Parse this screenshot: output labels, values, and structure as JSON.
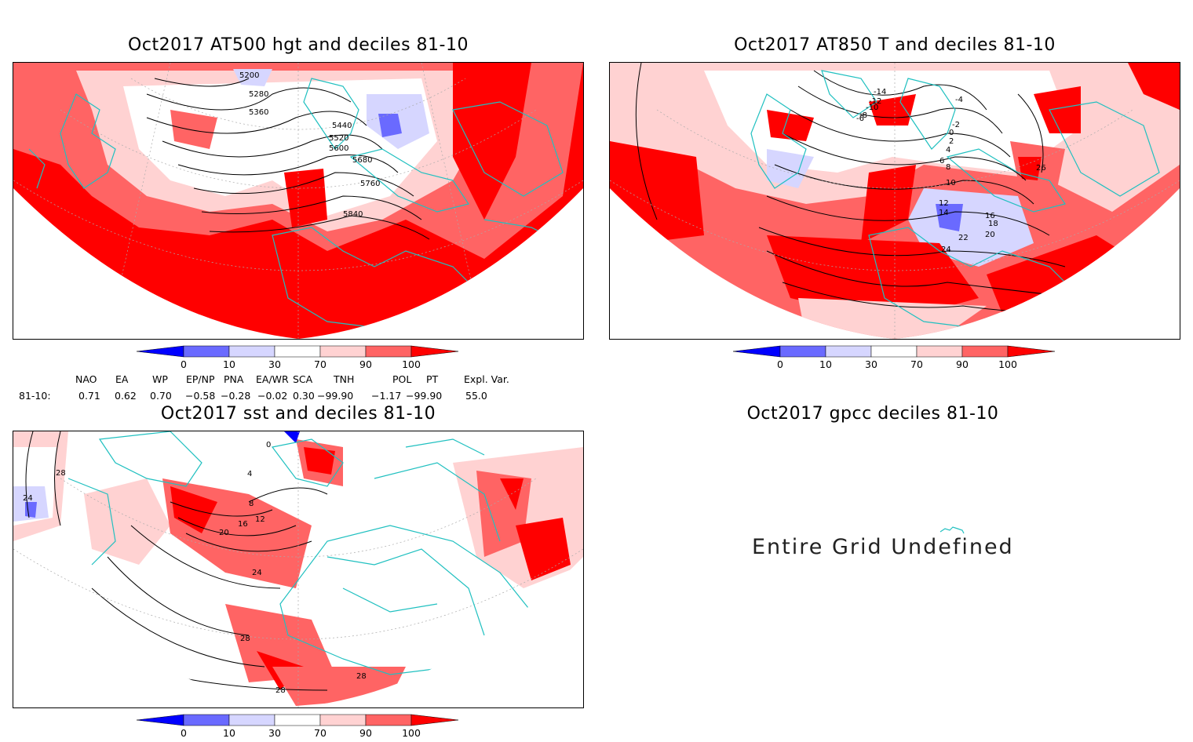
{
  "panels": {
    "hgt": {
      "title": "Oct2017 AT500 hgt and deciles 81-10",
      "contour_labels": [
        "5200",
        "5280",
        "5360",
        "5440",
        "5520",
        "5600",
        "5680",
        "5760",
        "5840"
      ]
    },
    "t850": {
      "title": "Oct2017 AT850 T and deciles 81-10",
      "contour_labels": [
        "-14",
        "-12",
        "-10",
        "-8",
        "-6",
        "-4",
        "-2",
        "0",
        "2",
        "4",
        "6",
        "8",
        "10",
        "12",
        "14",
        "16",
        "18",
        "20",
        "22",
        "24",
        "26"
      ]
    },
    "sst": {
      "title": "Oct2017 sst and deciles 81-10",
      "contour_labels": [
        "0",
        "4",
        "8",
        "12",
        "16",
        "20",
        "24",
        "28"
      ]
    },
    "gpcc": {
      "title": "Oct2017 gpcc deciles 81-10",
      "message": "Entire Grid Undefined"
    }
  },
  "colorbar": {
    "ticks": [
      "0",
      "10",
      "30",
      "70",
      "90",
      "100"
    ],
    "colors": {
      "deep_blue": "#0000ff",
      "mid_blue": "#6a6aff",
      "light_blue": "#d6d6ff",
      "white": "#ffffff",
      "light_red": "#ffd2d2",
      "mid_red": "#ff6464",
      "deep_red": "#ff0000"
    }
  },
  "indices": {
    "headers": [
      "NAO",
      "EA",
      "WP",
      "EP/NP",
      "PNA",
      "EA/WR",
      "SCA",
      "TNH",
      "POL",
      "PT",
      "Expl. Var."
    ],
    "row_label": "81-10:",
    "values": [
      "0.71",
      "0.62",
      "0.70",
      "−0.58",
      "−0.28",
      "−0.02",
      "0.30",
      "−99.90",
      "−1.17",
      "−99.90",
      "55.0"
    ]
  },
  "map_colors": {
    "coast": "#20c0c0",
    "contour": "#000000",
    "grid": "#aaaaaa"
  }
}
